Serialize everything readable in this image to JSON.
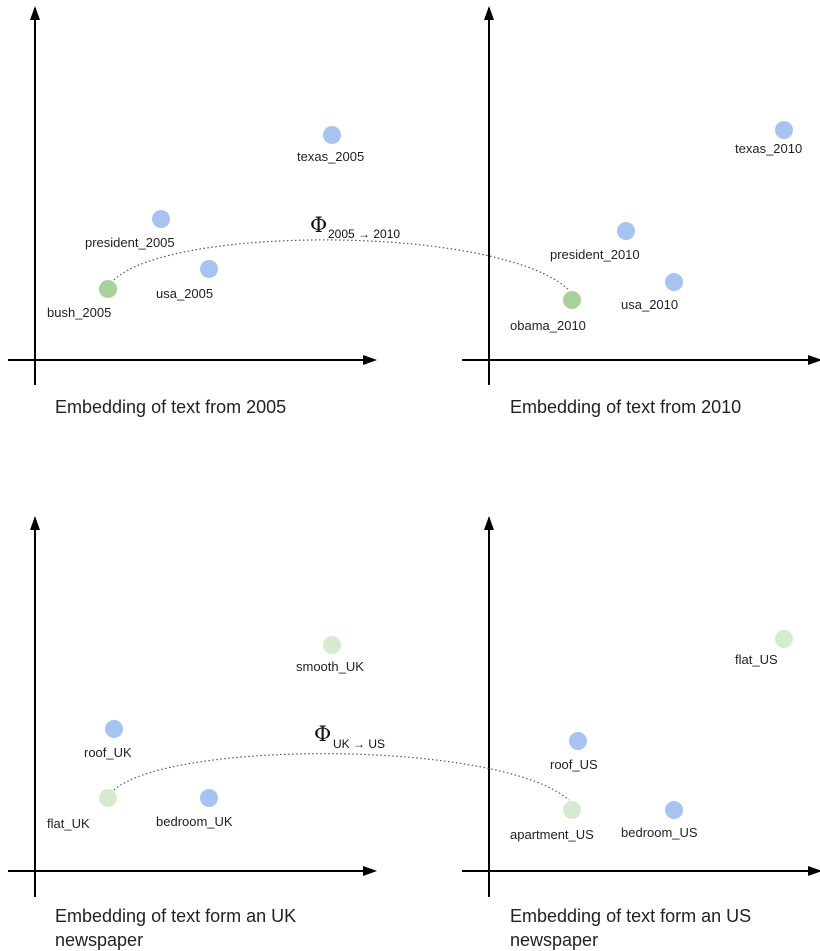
{
  "colors": {
    "blue_point": "#a7c3f2",
    "green_point": "#a8d29a",
    "light_green_point": "#d5ebcd",
    "axis": "#000000",
    "dotted_arc": "#555555"
  },
  "top": {
    "left_panel": {
      "caption": "Embedding of text from 2005",
      "points": [
        {
          "label": "texas_2005",
          "color": "blue"
        },
        {
          "label": "president_2005",
          "color": "blue"
        },
        {
          "label": "usa_2005",
          "color": "blue"
        },
        {
          "label": "bush_2005",
          "color": "green"
        }
      ]
    },
    "right_panel": {
      "caption": "Embedding of text from 2010",
      "points": [
        {
          "label": "texas_2010",
          "color": "blue"
        },
        {
          "label": "president_2010",
          "color": "blue"
        },
        {
          "label": "usa_2010",
          "color": "blue"
        },
        {
          "label": "obama_2010",
          "color": "green"
        }
      ]
    },
    "mapping": {
      "symbol": "Φ",
      "subscript": "2005 → 2010"
    }
  },
  "bottom": {
    "left_panel": {
      "caption_line1": "Embedding of text form an UK",
      "caption_line2": "newspaper",
      "points": [
        {
          "label": "smooth_UK",
          "color": "light_green"
        },
        {
          "label": "roof_UK",
          "color": "blue"
        },
        {
          "label": "flat_UK",
          "color": "light_green"
        },
        {
          "label": "bedroom_UK",
          "color": "blue"
        }
      ]
    },
    "right_panel": {
      "caption_line1": "Embedding of text form an US",
      "caption_line2": "newspaper",
      "points": [
        {
          "label": "flat_US",
          "color": "light_green"
        },
        {
          "label": "roof_US",
          "color": "blue"
        },
        {
          "label": "apartment_US",
          "color": "light_green"
        },
        {
          "label": "bedroom_US",
          "color": "blue"
        }
      ]
    },
    "mapping": {
      "symbol": "Φ",
      "subscript": "UK → US"
    }
  }
}
